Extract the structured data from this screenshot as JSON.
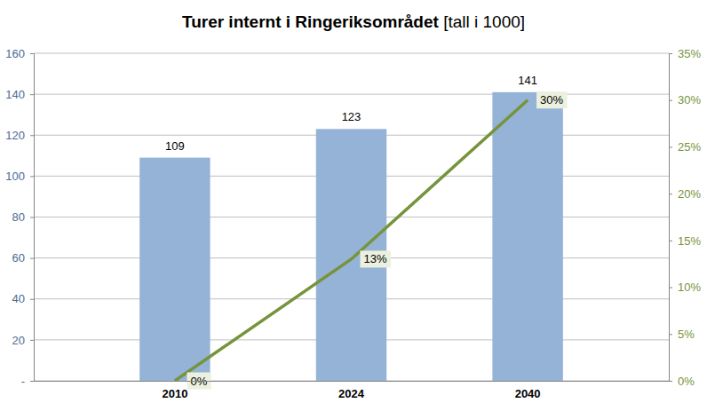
{
  "chart_data": {
    "type": "bar",
    "title": "Turer internt i Ringeriksområdet",
    "subtitle": "[tall i 1000]",
    "categories": [
      "2010",
      "2024",
      "2040"
    ],
    "series": [
      {
        "type": "bar",
        "color": "#95b3d7",
        "values": [
          109,
          123,
          141
        ]
      },
      {
        "type": "line",
        "color": "#77933c",
        "axis": "y2",
        "values": [
          0,
          13,
          30
        ],
        "value_labels": [
          "0%",
          "13%",
          "30%"
        ]
      }
    ],
    "ylim": [
      0,
      160
    ],
    "yticks": [
      {
        "value": 0,
        "label": "-"
      },
      20,
      40,
      60,
      80,
      100,
      120,
      140,
      160
    ],
    "y2lim": [
      0,
      35
    ],
    "y2ticks": [
      {
        "value": 0,
        "label": "0%"
      },
      {
        "value": 5,
        "label": "5%"
      },
      {
        "value": 10,
        "label": "10%"
      },
      {
        "value": 15,
        "label": "15%"
      },
      {
        "value": 20,
        "label": "20%"
      },
      {
        "value": 25,
        "label": "25%"
      },
      {
        "value": 30,
        "label": "30%"
      },
      {
        "value": 35,
        "label": "35%"
      }
    ],
    "grid": true,
    "data_labels": true
  }
}
